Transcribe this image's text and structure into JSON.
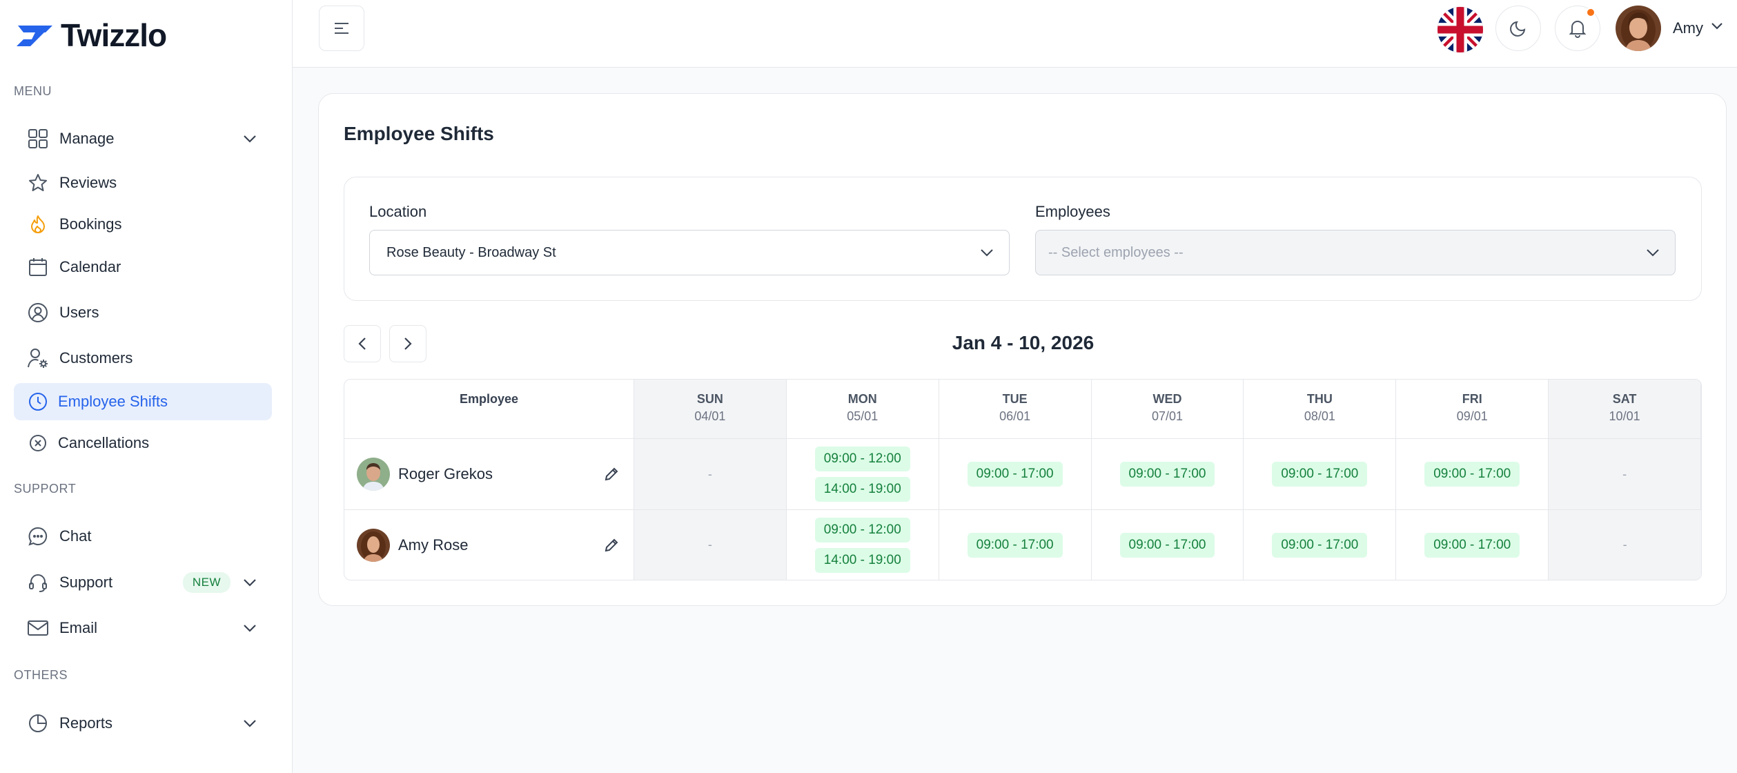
{
  "app": {
    "brand": "Twizzlo",
    "brand_color": "#2563eb"
  },
  "sidebar": {
    "groups": [
      {
        "label": "MENU"
      },
      {
        "label": "SUPPORT"
      },
      {
        "label": "OTHERS"
      }
    ],
    "items": [
      {
        "label": "Manage",
        "icon": "grid-icon",
        "expandable": true
      },
      {
        "label": "Reviews",
        "icon": "star-icon"
      },
      {
        "label": "Bookings",
        "icon": "flame-icon"
      },
      {
        "label": "Calendar",
        "icon": "calendar-icon"
      },
      {
        "label": "Users",
        "icon": "user-circle-icon"
      },
      {
        "label": "Customers",
        "icon": "user-gear-icon"
      },
      {
        "label": "Employee Shifts",
        "icon": "clock-icon",
        "active": true
      },
      {
        "label": "Cancellations",
        "icon": "x-circle-icon"
      },
      {
        "label": "Chat",
        "icon": "chat-icon"
      },
      {
        "label": "Support",
        "icon": "headset-icon",
        "badge": "NEW",
        "expandable": true
      },
      {
        "label": "Email",
        "icon": "mail-icon",
        "expandable": true
      },
      {
        "label": "Reports",
        "icon": "pie-chart-icon",
        "expandable": true
      }
    ]
  },
  "header": {
    "user_name": "Amy",
    "language": "English (UK)"
  },
  "page": {
    "title": "Employee Shifts",
    "location": {
      "label": "Location",
      "value": "Rose Beauty - Broadway St"
    },
    "employees": {
      "label": "Employees",
      "placeholder": "-- Select employees --"
    },
    "week_label": "Jan 4 - 10, 2026"
  },
  "schedule": {
    "employee_header": "Employee",
    "days": [
      {
        "day": "SUN",
        "date": "04/01",
        "weekend": true
      },
      {
        "day": "MON",
        "date": "05/01"
      },
      {
        "day": "TUE",
        "date": "06/01"
      },
      {
        "day": "WED",
        "date": "07/01"
      },
      {
        "day": "THU",
        "date": "08/01"
      },
      {
        "day": "FRI",
        "date": "09/01"
      },
      {
        "day": "SAT",
        "date": "10/01",
        "weekend": true
      }
    ],
    "rows": [
      {
        "name": "Roger Grekos",
        "shifts": [
          [
            "-"
          ],
          [
            "09:00 - 12:00",
            "14:00 - 19:00"
          ],
          [
            "09:00 - 17:00"
          ],
          [
            "09:00 - 17:00"
          ],
          [
            "09:00 - 17:00"
          ],
          [
            "09:00 - 17:00"
          ],
          [
            "-"
          ]
        ]
      },
      {
        "name": "Amy Rose",
        "shifts": [
          [
            "-"
          ],
          [
            "09:00 - 12:00",
            "14:00 - 19:00"
          ],
          [
            "09:00 - 17:00"
          ],
          [
            "09:00 - 17:00"
          ],
          [
            "09:00 - 17:00"
          ],
          [
            "09:00 - 17:00"
          ],
          [
            "-"
          ]
        ]
      }
    ]
  }
}
